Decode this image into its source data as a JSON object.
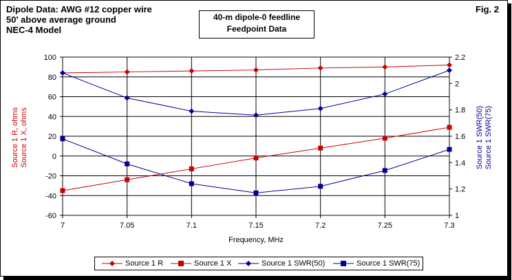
{
  "header": {
    "lines": [
      "Dipole Data:  AWG #12 copper wire",
      "50' above average ground",
      "NEC-4 Model"
    ],
    "figure_label": "Fig. 2",
    "title_lines": [
      "40-m dipole-0 feedline",
      "Feedpoint Data"
    ]
  },
  "colors": {
    "red": "#cc0000",
    "blue": "#000099",
    "grid": "#000000"
  },
  "chart_data": {
    "type": "line",
    "x": [
      7.0,
      7.05,
      7.1,
      7.15,
      7.2,
      7.25,
      7.3
    ],
    "x_tick_labels": [
      "7",
      "7.05",
      "7.1",
      "7.15",
      "7.2",
      "7.25",
      "7.3"
    ],
    "xlabel": "Frequency, MHz",
    "xlim": [
      7.0,
      7.3
    ],
    "ylabel_left": [
      "Source 1 R, ohms",
      "Source 1 X, ohms"
    ],
    "ylim_left": [
      -60,
      100
    ],
    "y_ticks_left": [
      "-60",
      "-40",
      "-20",
      "0",
      "20",
      "40",
      "60",
      "80",
      "100"
    ],
    "ylabel_right": [
      "Source 1 SWR(50)",
      "Source 1 SWR(75)"
    ],
    "ylim_right": [
      1,
      2.2
    ],
    "y_ticks_right": [
      "1",
      "1.2",
      "1.4",
      "1.6",
      "1.8",
      "2",
      "2.2"
    ],
    "grid": true,
    "legend_position": "bottom",
    "series": [
      {
        "name": "Source 1 R",
        "axis": "left",
        "color": "#cc0000",
        "marker": "diamond",
        "values": [
          84,
          85,
          86,
          87,
          89,
          90,
          92
        ]
      },
      {
        "name": "Source 1 X",
        "axis": "left",
        "color": "#cc0000",
        "marker": "square",
        "values": [
          -35,
          -24,
          -13,
          -2,
          8,
          18,
          29
        ]
      },
      {
        "name": "Source 1 SWR(50)",
        "axis": "right",
        "color": "#000099",
        "marker": "diamond",
        "values": [
          2.08,
          1.89,
          1.79,
          1.76,
          1.81,
          1.92,
          2.1
        ]
      },
      {
        "name": "Source 1 SWR(75)",
        "axis": "right",
        "color": "#000099",
        "marker": "square",
        "values": [
          1.58,
          1.39,
          1.24,
          1.17,
          1.22,
          1.34,
          1.5
        ]
      }
    ]
  }
}
